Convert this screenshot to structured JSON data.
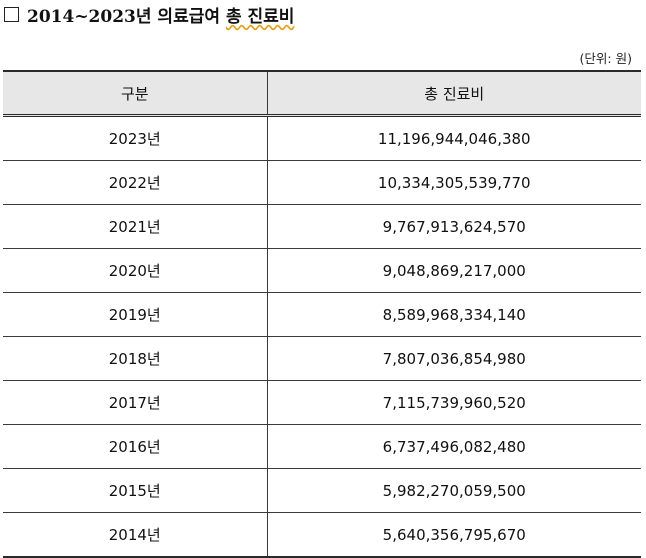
{
  "header": {
    "title_prefix": "2014~2023년 의료급여",
    "title_emphasis": "총 진료비"
  },
  "unit_label": "(단위: 원)",
  "table": {
    "columns": [
      "구분",
      "총 진료비"
    ],
    "rows": [
      {
        "year": "2023년",
        "cost": "11,196,944,046,380"
      },
      {
        "year": "2022년",
        "cost": "10,334,305,539,770"
      },
      {
        "year": "2021년",
        "cost": "9,767,913,624,570"
      },
      {
        "year": "2020년",
        "cost": "9,048,869,217,000"
      },
      {
        "year": "2019년",
        "cost": "8,589,968,334,140"
      },
      {
        "year": "2018년",
        "cost": "7,807,036,854,980"
      },
      {
        "year": "2017년",
        "cost": "7,115,739,960,520"
      },
      {
        "year": "2016년",
        "cost": "6,737,496,082,480"
      },
      {
        "year": "2015년",
        "cost": "5,982,270,059,500"
      },
      {
        "year": "2014년",
        "cost": "5,640,356,795,670"
      }
    ]
  }
}
